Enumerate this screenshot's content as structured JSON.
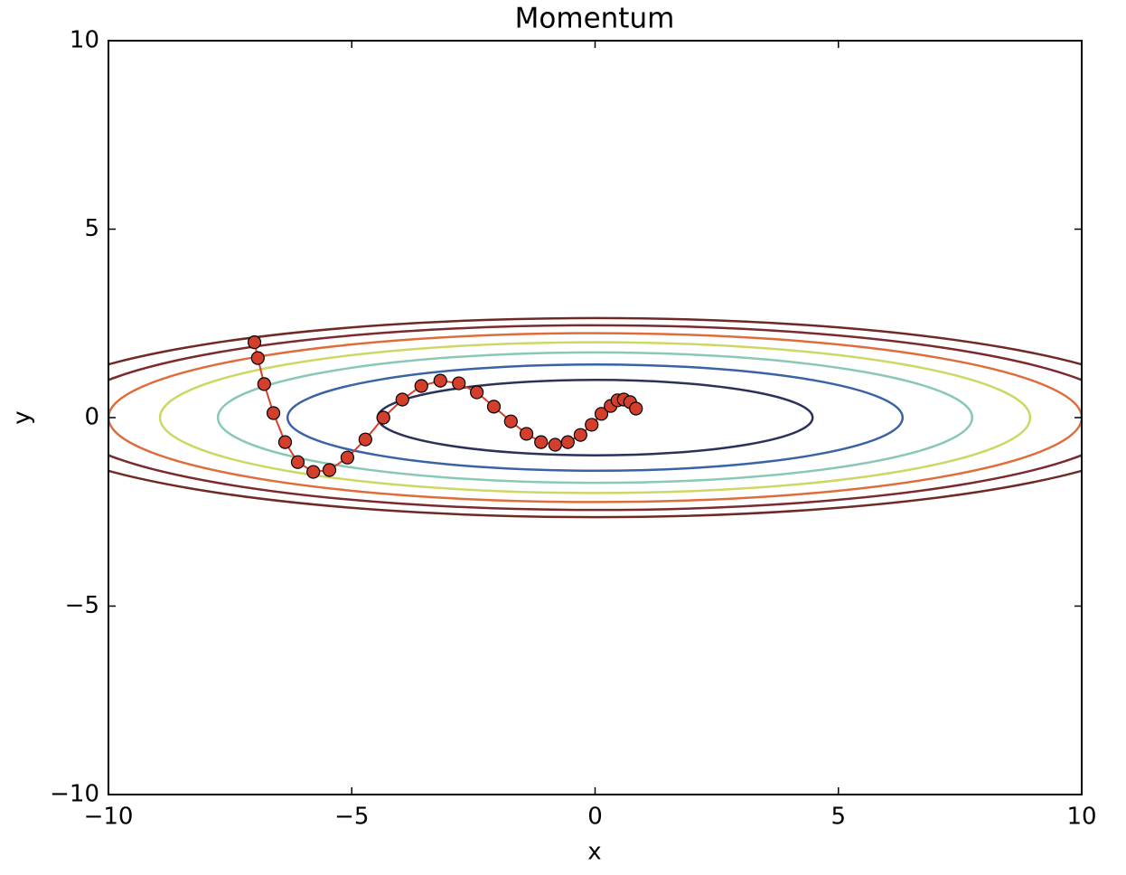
{
  "chart_data": {
    "type": "line",
    "title": "Momentum",
    "x_label": "x",
    "y_label": "y",
    "xlim": [
      -10,
      10
    ],
    "ylim": [
      -10,
      10
    ],
    "xticks": [
      {
        "value": -10,
        "label": "−10"
      },
      {
        "value": -5,
        "label": "−5"
      },
      0,
      5,
      10
    ],
    "yticks": [
      {
        "value": -10,
        "label": "−10"
      },
      {
        "value": -5,
        "label": "−5"
      },
      0,
      5,
      10
    ],
    "contours": [
      {
        "rx": 4.47,
        "ry": 1.0,
        "color": "#2b3158"
      },
      {
        "rx": 6.32,
        "ry": 1.41,
        "color": "#3a63a6"
      },
      {
        "rx": 7.75,
        "ry": 1.73,
        "color": "#88c8b5"
      },
      {
        "rx": 8.94,
        "ry": 2.0,
        "color": "#cdd764"
      },
      {
        "rx": 10.0,
        "ry": 2.24,
        "color": "#df6d3a"
      },
      {
        "rx": 10.95,
        "ry": 2.45,
        "color": "#7b2a2d"
      },
      {
        "rx": 11.83,
        "ry": 2.64,
        "color": "#6f2a26"
      }
    ],
    "line_color": "#d8402b",
    "marker_color": "#d33f2c",
    "x": [
      -7.0,
      -6.93,
      -6.8,
      -6.61,
      -6.37,
      -6.11,
      -5.79,
      -5.46,
      -5.09,
      -4.72,
      -4.35,
      -3.96,
      -3.57,
      -3.18,
      -2.8,
      -2.43,
      -2.08,
      -1.73,
      -1.41,
      -1.11,
      -0.82,
      -0.56,
      -0.3,
      -0.07,
      0.13,
      0.32,
      0.46,
      0.59,
      0.72,
      0.84
    ],
    "values": [
      2.0,
      1.58,
      0.89,
      0.12,
      -0.65,
      -1.18,
      -1.44,
      -1.39,
      -1.06,
      -0.58,
      0.0,
      0.48,
      0.84,
      0.98,
      0.91,
      0.67,
      0.29,
      -0.1,
      -0.43,
      -0.65,
      -0.72,
      -0.65,
      -0.46,
      -0.19,
      0.1,
      0.31,
      0.46,
      0.48,
      0.41,
      0.24
    ]
  }
}
